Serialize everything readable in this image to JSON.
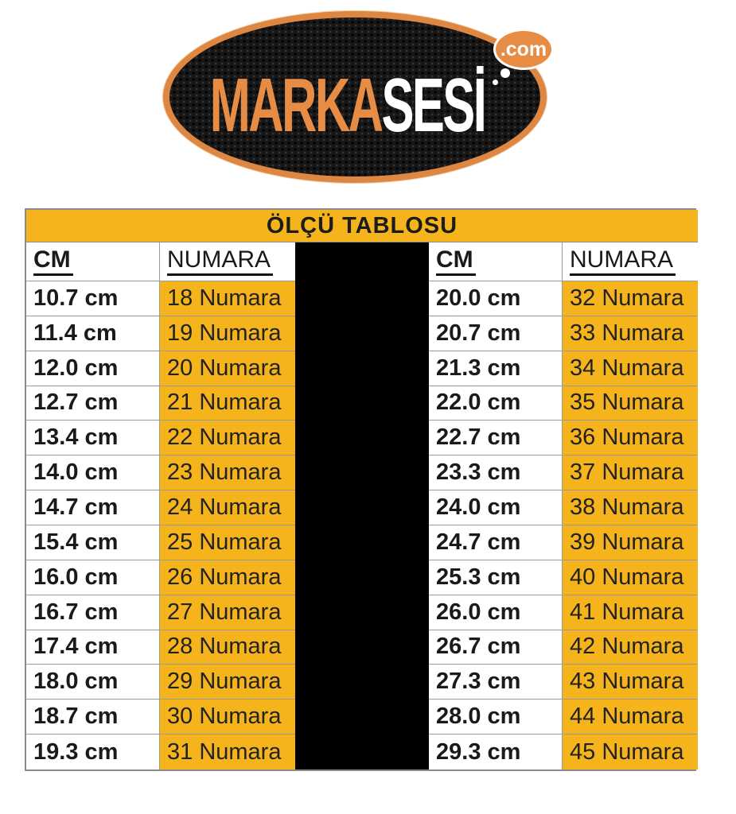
{
  "logo": {
    "brand_orange": "MARKA",
    "brand_white": "SESİ",
    "tld_bubble": ".com"
  },
  "colors": {
    "gold": "#f5b41c",
    "logo_orange": "#e68c44",
    "logo_ring_orange": "#dd8742",
    "divider_black": "#000000",
    "grid_gray": "#9b9b9b",
    "text_black": "#1a1a1a"
  },
  "chart_data": {
    "type": "table",
    "title": "ÖLÇÜ TABLOSU",
    "column_headers": [
      "CM",
      "NUMARA",
      "CM",
      "NUMARA"
    ],
    "rows": [
      {
        "left_cm": "10.7 cm",
        "left_numara": "18 Numara",
        "right_cm": "20.0 cm",
        "right_numara": "32 Numara"
      },
      {
        "left_cm": "11.4 cm",
        "left_numara": "19 Numara",
        "right_cm": "20.7 cm",
        "right_numara": "33 Numara"
      },
      {
        "left_cm": "12.0 cm",
        "left_numara": "20 Numara",
        "right_cm": "21.3 cm",
        "right_numara": "34 Numara"
      },
      {
        "left_cm": "12.7 cm",
        "left_numara": "21 Numara",
        "right_cm": "22.0 cm",
        "right_numara": "35 Numara"
      },
      {
        "left_cm": "13.4 cm",
        "left_numara": "22 Numara",
        "right_cm": "22.7 cm",
        "right_numara": "36 Numara"
      },
      {
        "left_cm": "14.0 cm",
        "left_numara": "23 Numara",
        "right_cm": "23.3 cm",
        "right_numara": "37 Numara"
      },
      {
        "left_cm": "14.7 cm",
        "left_numara": "24 Numara",
        "right_cm": "24.0 cm",
        "right_numara": "38 Numara"
      },
      {
        "left_cm": "15.4 cm",
        "left_numara": "25 Numara",
        "right_cm": "24.7 cm",
        "right_numara": "39 Numara"
      },
      {
        "left_cm": "16.0 cm",
        "left_numara": "26 Numara",
        "right_cm": "25.3 cm",
        "right_numara": "40 Numara"
      },
      {
        "left_cm": "16.7 cm",
        "left_numara": "27 Numara",
        "right_cm": "26.0 cm",
        "right_numara": "41 Numara"
      },
      {
        "left_cm": "17.4 cm",
        "left_numara": "28 Numara",
        "right_cm": "26.7 cm",
        "right_numara": "42 Numara"
      },
      {
        "left_cm": "18.0 cm",
        "left_numara": "29 Numara",
        "right_cm": "27.3 cm",
        "right_numara": "43 Numara"
      },
      {
        "left_cm": "18.7 cm",
        "left_numara": "30 Numara",
        "right_cm": "28.0 cm",
        "right_numara": "44 Numara"
      },
      {
        "left_cm": "19.3 cm",
        "left_numara": "31 Numara",
        "right_cm": "29.3 cm",
        "right_numara": "45 Numara"
      }
    ]
  }
}
